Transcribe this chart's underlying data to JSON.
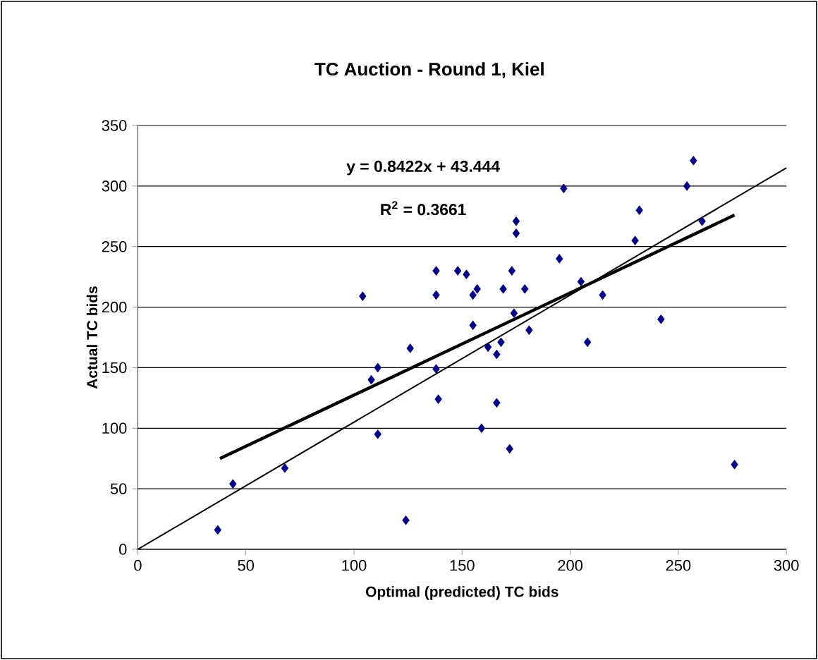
{
  "chart_data": {
    "type": "scatter",
    "title": "TC Auction - Round 1, Kiel",
    "xlabel": "Optimal (predicted) TC bids",
    "ylabel": "Actual TC bids",
    "xlim": [
      0,
      300
    ],
    "ylim": [
      0,
      350
    ],
    "xticks": [
      0,
      50,
      100,
      150,
      200,
      250,
      300
    ],
    "yticks": [
      0,
      50,
      100,
      150,
      200,
      250,
      300,
      350
    ],
    "grid": "y",
    "annotations": [
      "**y = 0.8422x + 43.444**",
      "**R$^{2}$ = 0.3661**"
    ],
    "series": [
      {
        "marker": "diamond",
        "color": "#000080",
        "x": [
          37,
          44,
          68,
          124,
          104,
          111,
          108,
          111,
          126,
          138,
          138,
          138,
          139,
          148,
          152,
          155,
          155,
          157,
          159,
          162,
          166,
          166,
          168,
          169,
          172,
          173,
          174,
          175,
          175,
          179,
          181,
          195,
          197,
          205,
          208,
          215,
          230,
          232,
          242,
          254,
          257,
          261,
          276
        ],
        "values": [
          16,
          54,
          67,
          24,
          209,
          150,
          140,
          95,
          166,
          230,
          210,
          149,
          124,
          230,
          227,
          185,
          210,
          215,
          100,
          167,
          161,
          121,
          171,
          215,
          83,
          230,
          195,
          261,
          271,
          215,
          181,
          240,
          298,
          221,
          171,
          210,
          255,
          280,
          190,
          300,
          321,
          271,
          70
        ]
      },
      {
        "type": "line",
        "color": "#000000",
        "marker": "none",
        "x": [
          38,
          276
        ],
        "values": [
          75,
          276
        ]
      },
      {
        "type": "line",
        "color": "#000000",
        "marker": "none",
        "x": [
          0,
          300
        ],
        "values": [
          0,
          315
        ]
      }
    ]
  }
}
